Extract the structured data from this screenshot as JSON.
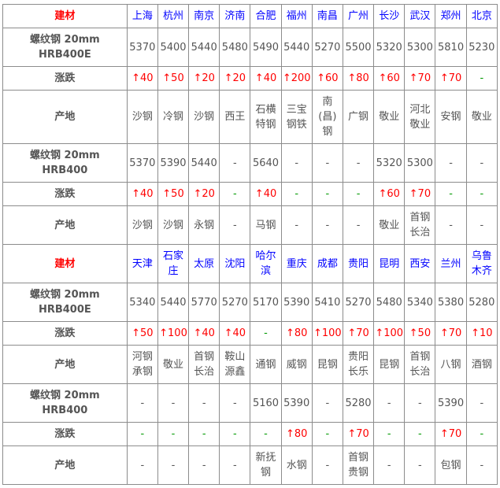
{
  "sections": [
    {
      "header_label": "建材",
      "cities": [
        "上海",
        "杭州",
        "南京",
        "济南",
        "合肥",
        "福州",
        "南昌",
        "广州",
        "长沙",
        "武汉",
        "郑州",
        "北京"
      ],
      "rows": [
        {
          "label": "螺纹钢 20mm HRB400E",
          "type": "price",
          "values": [
            "5370",
            "5400",
            "5440",
            "5480",
            "5490",
            "5440",
            "5270",
            "5500",
            "5320",
            "5300",
            "5810",
            "5230"
          ]
        },
        {
          "label": "涨跌",
          "type": "change",
          "values": [
            "↑40",
            "↑50",
            "↑20",
            "↑20",
            "↑40",
            "↑200",
            "↑60",
            "↑80",
            "↑60",
            "↑70",
            "↑70",
            "-"
          ]
        },
        {
          "label": "产地",
          "type": "origin",
          "values": [
            "沙钢",
            "冷钢",
            "沙钢",
            "西王",
            "石横特钢",
            "三宝钢铁",
            "南(昌)钢",
            "广钢",
            "敬业",
            "河北敬业",
            "安钢",
            "敬业"
          ]
        },
        {
          "label": "螺纹钢 20mm HRB400",
          "type": "price",
          "values": [
            "5370",
            "5390",
            "5440",
            "-",
            "5640",
            "-",
            "-",
            "-",
            "5320",
            "5300",
            "-",
            "-"
          ]
        },
        {
          "label": "涨跌",
          "type": "change",
          "values": [
            "↑40",
            "↑50",
            "↑20",
            "-",
            "↑40",
            "-",
            "-",
            "-",
            "↑60",
            "↑70",
            "-",
            "-"
          ]
        },
        {
          "label": "产地",
          "type": "origin",
          "values": [
            "沙钢",
            "沙钢",
            "永钢",
            "-",
            "马钢",
            "-",
            "-",
            "-",
            "敬业",
            "首钢长治",
            "-",
            "-"
          ]
        }
      ]
    },
    {
      "header_label": "建材",
      "cities": [
        "天津",
        "石家庄",
        "太原",
        "沈阳",
        "哈尔滨",
        "重庆",
        "成都",
        "贵阳",
        "昆明",
        "西安",
        "兰州",
        "乌鲁木齐"
      ],
      "rows": [
        {
          "label": "螺纹钢 20mm HRB400E",
          "type": "price",
          "values": [
            "5340",
            "5440",
            "5770",
            "5270",
            "5170",
            "5390",
            "5410",
            "5270",
            "5480",
            "5340",
            "5380",
            "5280"
          ]
        },
        {
          "label": "涨跌",
          "type": "change",
          "values": [
            "↑50",
            "↑100",
            "↑40",
            "↑40",
            "-",
            "↑80",
            "↑100",
            "↑70",
            "↑100",
            "↑50",
            "↑70",
            "↑10"
          ]
        },
        {
          "label": "产地",
          "type": "origin",
          "values": [
            "河钢承钢",
            "敬业",
            "首钢长治",
            "鞍山源鑫",
            "通钢",
            "威钢",
            "昆钢",
            "贵阳长乐",
            "昆钢",
            "首钢长治",
            "八钢",
            "酒钢"
          ]
        },
        {
          "label": "螺纹钢 20mm HRB400",
          "type": "price",
          "values": [
            "-",
            "-",
            "-",
            "-",
            "5160",
            "5390",
            "-",
            "5280",
            "-",
            "-",
            "5390",
            "-"
          ]
        },
        {
          "label": "涨跌",
          "type": "change",
          "values": [
            "-",
            "-",
            "-",
            "-",
            "-",
            "↑80",
            "-",
            "↑70",
            "-",
            "-",
            "↑70",
            "-"
          ]
        },
        {
          "label": "产地",
          "type": "origin",
          "values": [
            "-",
            "-",
            "-",
            "-",
            "新抚钢",
            "水钢",
            "-",
            "首钢贵钢",
            "-",
            "-",
            "包钢",
            "-"
          ]
        }
      ]
    }
  ],
  "colors": {
    "header_label": "#ff0000",
    "city": "#0000ff",
    "up": "#ff0000",
    "flat": "#009900",
    "text": "#555555"
  }
}
